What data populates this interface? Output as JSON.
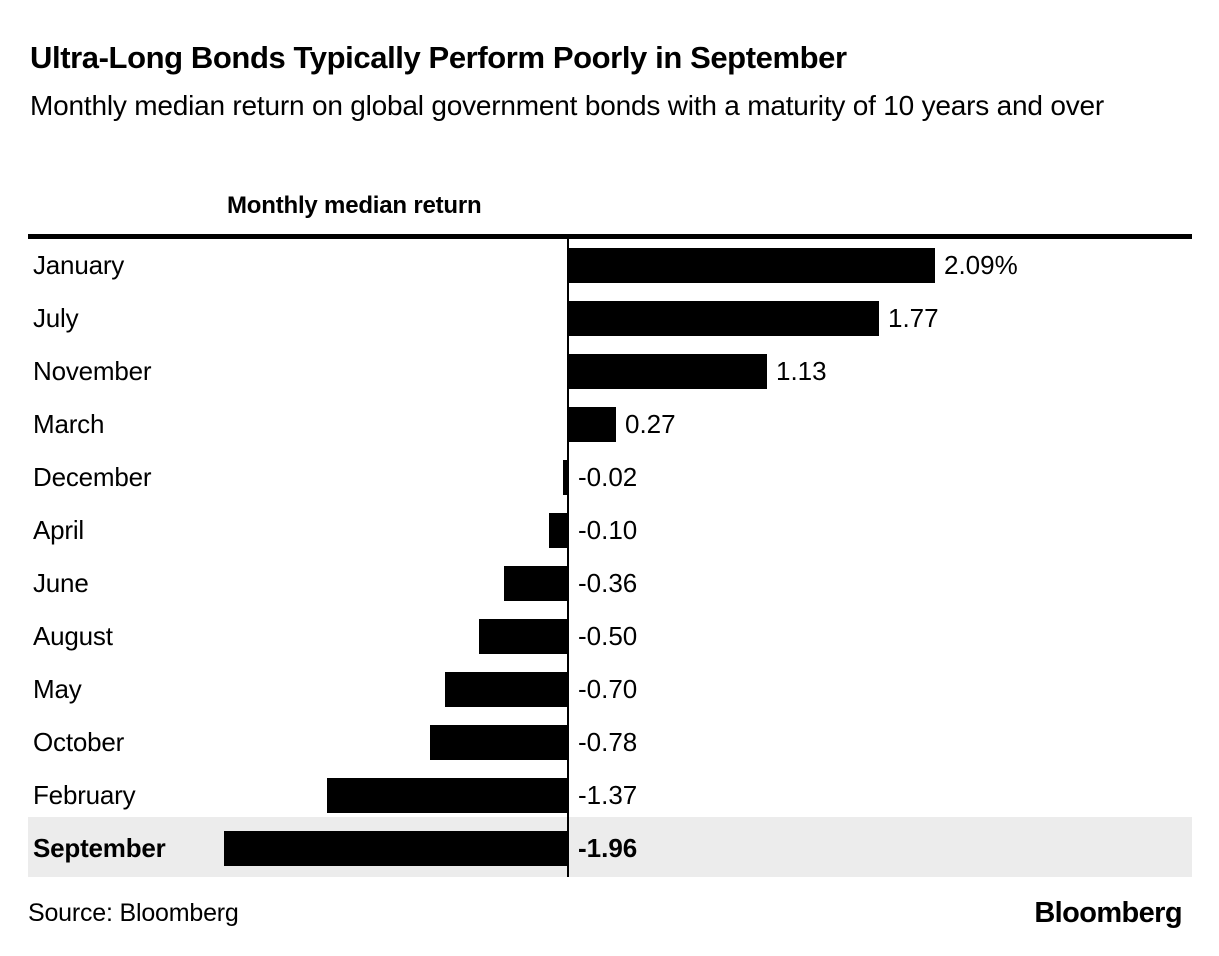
{
  "header": {
    "title": "Ultra-Long Bonds Typically Perform Poorly in September",
    "subtitle": "Monthly median return on global government bonds with a maturity of 10 years and over"
  },
  "chart_data": {
    "type": "bar",
    "orientation": "horizontal",
    "title": "Ultra-Long Bonds Typically Perform Poorly in September",
    "subtitle": "Monthly median return on global government bonds with a maturity of 10 years and over",
    "column_header": "Monthly median return",
    "categories": [
      "January",
      "July",
      "November",
      "March",
      "December",
      "April",
      "June",
      "August",
      "May",
      "October",
      "February",
      "September"
    ],
    "values": [
      2.09,
      1.77,
      1.13,
      0.27,
      -0.02,
      -0.1,
      -0.36,
      -0.5,
      -0.7,
      -0.78,
      -1.37,
      -1.96
    ],
    "value_labels": [
      "2.09%",
      "1.77",
      "1.13",
      "0.27",
      "-0.02",
      "-0.10",
      "-0.36",
      "-0.50",
      "-0.70",
      "-0.78",
      "-1.37",
      "-1.96"
    ],
    "unit": "%",
    "xlim": [
      -1.96,
      2.09
    ],
    "grid": false,
    "legend": false,
    "highlighted_category": "September",
    "bar_color": "#000000",
    "highlight_row_background": "#ececec",
    "axis_color": "#000000"
  },
  "footer": {
    "source": "Source: Bloomberg",
    "logo": "Bloomberg"
  }
}
